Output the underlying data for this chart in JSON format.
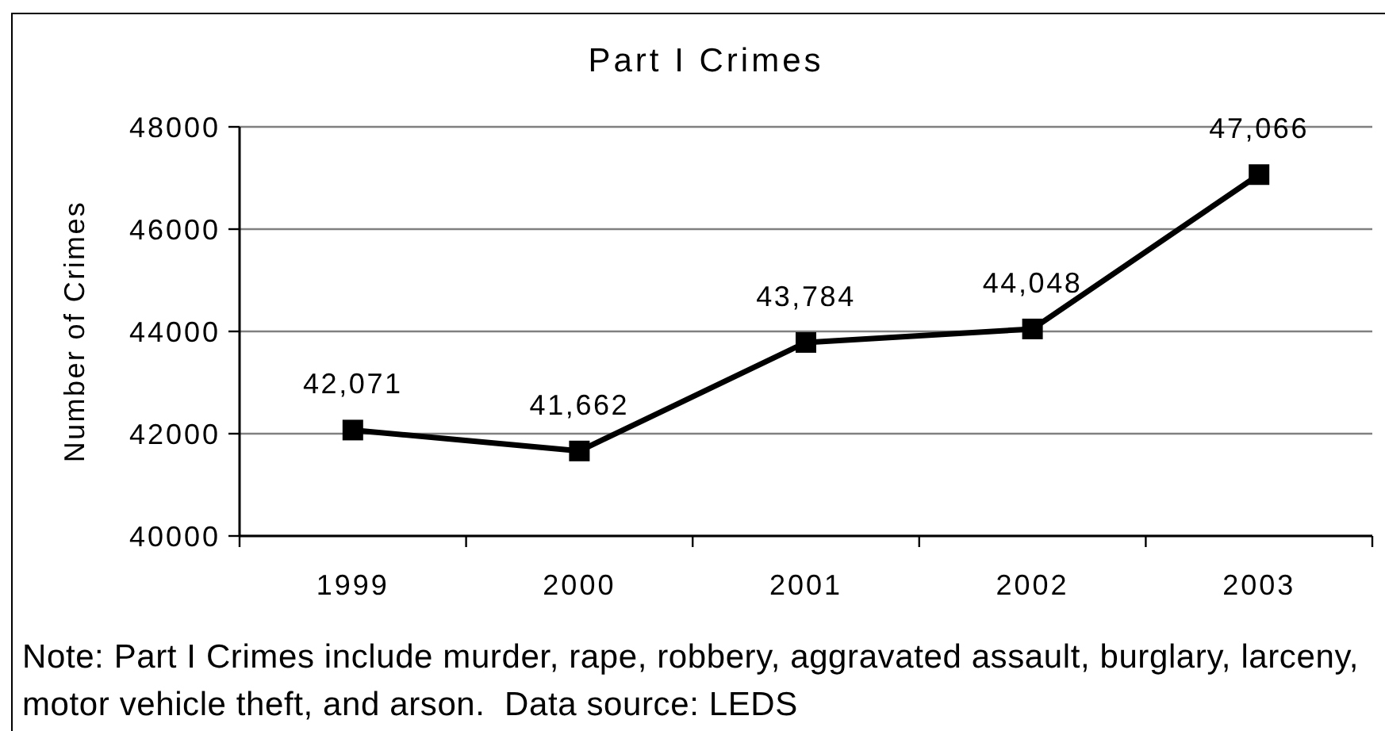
{
  "chart_data": {
    "type": "line",
    "title": "Part I Crimes",
    "ylabel": "Number of Crimes",
    "categories": [
      "1999",
      "2000",
      "2001",
      "2002",
      "2003"
    ],
    "series": [
      {
        "color": "#000000",
        "values": [
          42071,
          41662,
          43784,
          44048,
          47066
        ],
        "value_labels": [
          "42,071",
          "41,662",
          "43,784",
          "44,048",
          "47,066"
        ]
      }
    ],
    "ylim": [
      40000,
      48000
    ],
    "yticks": [
      40000,
      42000,
      44000,
      46000,
      48000
    ],
    "grid": "y",
    "marker": "square",
    "line_style": "solid",
    "annotations": [
      "Note: Part I Crimes include murder, rape, robbery, aggravated assault, burglary, larceny, motor vehicle theft, and arson.  Data source: LEDS"
    ]
  }
}
